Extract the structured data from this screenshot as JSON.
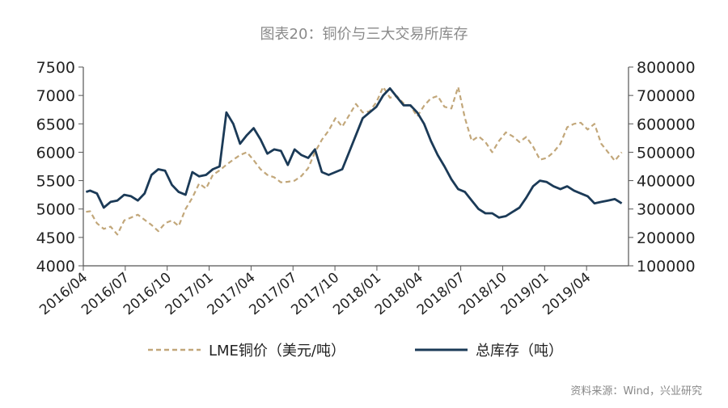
{
  "chart_data": {
    "type": "line",
    "title": "图表20：铜价与三大交易所库存",
    "source": "资料来源：Wind，兴业研究",
    "colors": {
      "copper": "#c2a77a",
      "stock": "#1b3a57",
      "axis": "#555555",
      "title": "#8a8a8a",
      "source": "#888888"
    },
    "x_tick_labels": [
      "2016/04",
      "2016/07",
      "2016/10",
      "2017/01",
      "2017/04",
      "2017/07",
      "2017/10",
      "2018/01",
      "2018/04",
      "2018/07",
      "2018/10",
      "2019/01",
      "2019/04"
    ],
    "y_left": {
      "label": "LME铜价（美元/吨）",
      "ylim": [
        4000,
        7500
      ],
      "ticks": [
        "4000",
        "4500",
        "5000",
        "5500",
        "6000",
        "6500",
        "7000",
        "7500"
      ]
    },
    "y_right": {
      "label": "总库存（吨）",
      "ylim": [
        100000,
        800000
      ],
      "ticks": [
        "100000",
        "200000",
        "300000",
        "400000",
        "500000",
        "600000",
        "700000",
        "800000"
      ]
    },
    "x_range": [
      0,
      40
    ],
    "series": [
      {
        "name": "LME铜价（美元/吨）",
        "axis": "left",
        "style": "dashed",
        "x": [
          0.2,
          0.5,
          1.0,
          1.5,
          2.0,
          2.5,
          3.0,
          3.5,
          4.0,
          4.5,
          5.0,
          5.5,
          6.0,
          6.5,
          7.0,
          7.5,
          8.0,
          8.5,
          9.0,
          9.5,
          10.0,
          10.5,
          11.0,
          11.5,
          12.0,
          12.5,
          13.0,
          13.5,
          14.0,
          14.5,
          15.0,
          15.5,
          16.0,
          16.5,
          17.0,
          17.5,
          18.0,
          18.5,
          19.0,
          19.5,
          20.0,
          20.5,
          21.0,
          21.5,
          22.0,
          22.5,
          23.0,
          23.5,
          24.0,
          24.5,
          25.0,
          25.5,
          26.0,
          26.5,
          27.0,
          27.5,
          28.0,
          28.5,
          29.0,
          29.5,
          30.0,
          30.5,
          31.0,
          31.5,
          32.0,
          32.5,
          33.0,
          33.5,
          34.0,
          34.5,
          35.0,
          35.5,
          36.0,
          36.5,
          37.0,
          37.5,
          38.0,
          38.5,
          39.0,
          39.5
        ],
        "values": [
          4950,
          4960,
          4750,
          4650,
          4690,
          4550,
          4800,
          4850,
          4900,
          4810,
          4720,
          4610,
          4750,
          4800,
          4700,
          5000,
          5200,
          5450,
          5360,
          5600,
          5680,
          5780,
          5870,
          5950,
          6000,
          5860,
          5700,
          5600,
          5560,
          5470,
          5480,
          5500,
          5580,
          5720,
          6000,
          6220,
          6380,
          6600,
          6450,
          6650,
          6850,
          6700,
          6720,
          6880,
          7150,
          6960,
          6990,
          6860,
          6820,
          6630,
          6820,
          6950,
          6990,
          6800,
          6770,
          7150,
          6600,
          6200,
          6280,
          6180,
          6000,
          6200,
          6350,
          6280,
          6180,
          6270,
          6100,
          5870,
          5900,
          6000,
          6150,
          6440,
          6500,
          6520,
          6400,
          6500,
          6150,
          6000,
          5850,
          6000
        ]
      },
      {
        "name": "总库存（吨）",
        "axis": "right",
        "style": "solid",
        "x": [
          0.2,
          0.5,
          1.0,
          1.5,
          2.0,
          2.5,
          3.0,
          3.5,
          4.0,
          4.5,
          5.0,
          5.5,
          6.0,
          6.5,
          7.0,
          7.5,
          8.0,
          8.5,
          9.0,
          9.5,
          10.0,
          10.5,
          11.0,
          11.5,
          12.0,
          12.5,
          13.0,
          13.5,
          14.0,
          14.5,
          15.0,
          15.5,
          16.0,
          16.5,
          17.0,
          17.5,
          18.0,
          18.5,
          19.0,
          19.5,
          20.0,
          20.5,
          21.0,
          21.5,
          22.0,
          22.5,
          23.0,
          23.5,
          24.0,
          24.5,
          25.0,
          25.5,
          26.0,
          26.5,
          27.0,
          27.5,
          28.0,
          28.5,
          29.0,
          29.5,
          30.0,
          30.5,
          31.0,
          31.5,
          32.0,
          32.5,
          33.0,
          33.5,
          34.0,
          34.5,
          35.0,
          35.5,
          36.0,
          36.5,
          37.0,
          37.5,
          38.0,
          38.5,
          39.0,
          39.5
        ],
        "values": [
          360000,
          365000,
          355000,
          305000,
          325000,
          330000,
          350000,
          345000,
          330000,
          355000,
          420000,
          440000,
          435000,
          385000,
          360000,
          350000,
          430000,
          415000,
          420000,
          440000,
          450000,
          640000,
          600000,
          530000,
          560000,
          585000,
          545000,
          495000,
          510000,
          505000,
          455000,
          510000,
          490000,
          480000,
          510000,
          430000,
          420000,
          430000,
          440000,
          500000,
          560000,
          620000,
          640000,
          660000,
          700000,
          725000,
          695000,
          665000,
          665000,
          640000,
          600000,
          540000,
          490000,
          450000,
          405000,
          370000,
          360000,
          330000,
          300000,
          285000,
          285000,
          270000,
          275000,
          290000,
          305000,
          340000,
          380000,
          400000,
          395000,
          380000,
          370000,
          380000,
          365000,
          355000,
          345000,
          320000,
          325000,
          330000,
          335000,
          320000
        ]
      }
    ]
  }
}
